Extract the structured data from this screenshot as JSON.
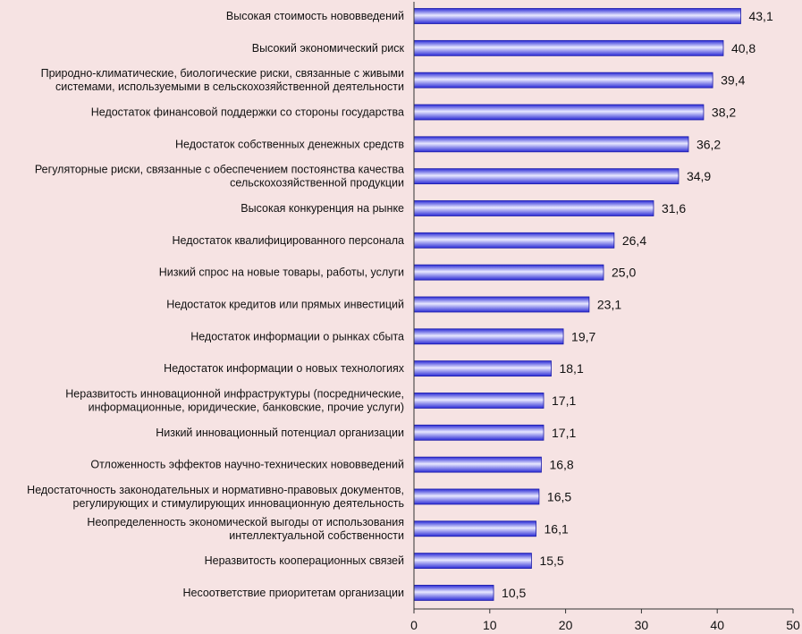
{
  "chart_data": {
    "type": "bar",
    "orientation": "horizontal",
    "title": "",
    "xlabel": "",
    "ylabel": "",
    "xlim": [
      0,
      50
    ],
    "xticks": [
      0,
      10,
      20,
      30,
      40,
      50
    ],
    "grid": false,
    "legend": "none",
    "bar_color": "#2b2bd6",
    "bar_highlight": "#e8e8ff",
    "background": "#f6e3e3",
    "categories": [
      [
        "Высокая стоимость нововведений"
      ],
      [
        "Высокий экономический риск"
      ],
      [
        "Природно-климатические, биологические риски, связанные с живыми",
        "системами, используемыми в сельскохозяйственной деятельности"
      ],
      [
        "Недостаток финансовой поддержки со стороны государства"
      ],
      [
        "Недостаток собственных денежных средств"
      ],
      [
        "Регуляторные риски, связанные с обеспечением постоянства качества",
        "сельскохозяйственной продукции"
      ],
      [
        "Высокая конкуренция на рынке"
      ],
      [
        "Недостаток квалифицированного персонала"
      ],
      [
        "Низкий спрос на новые товары, работы, услуги"
      ],
      [
        "Недостаток кредитов или прямых инвестиций"
      ],
      [
        "Недостаток информации о рынках сбыта"
      ],
      [
        "Недостаток информации о новых технологиях"
      ],
      [
        "Неразвитость инновационной инфраструктуры (посреднические,",
        "информационные, юридические, банковские, прочие услуги)"
      ],
      [
        "Низкий инновационный потенциал организации"
      ],
      [
        "Отложенность эффектов научно-технических нововведений"
      ],
      [
        "Недостаточность законодательных и нормативно-правовых документов,",
        "регулирующих и стимулирующих инновационную деятельность"
      ],
      [
        "Неопределенность экономической выгоды от использования",
        "интеллектуальной собственности"
      ],
      [
        "Неразвитость кооперационных связей"
      ],
      [
        "Несоответствие приоритетам организации"
      ]
    ],
    "values": [
      43.1,
      40.8,
      39.4,
      38.2,
      36.2,
      34.9,
      31.6,
      26.4,
      25.0,
      23.1,
      19.7,
      18.1,
      17.1,
      17.1,
      16.8,
      16.5,
      16.1,
      15.5,
      10.5
    ],
    "value_labels": [
      "43,1",
      "40,8",
      "39,4",
      "38,2",
      "36,2",
      "34,9",
      "31,6",
      "26,4",
      "25,0",
      "23,1",
      "19,7",
      "18,1",
      "17,1",
      "17,1",
      "16,8",
      "16,5",
      "16,1",
      "15,5",
      "10,5"
    ]
  }
}
